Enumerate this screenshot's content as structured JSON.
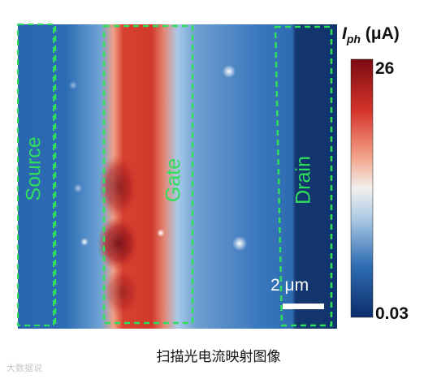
{
  "figure": {
    "regions": {
      "source": "Source",
      "gate": "Gate",
      "drain": "Drain"
    },
    "scale_bar": "2 μm",
    "colorbar": {
      "symbol": "I",
      "subscript": "ph",
      "unit": " (μA)",
      "max_label": "26",
      "min_label": "0.03",
      "max": 26,
      "min": 0.03,
      "colors": [
        "#0b2d6b",
        "#2f6db3",
        "#a9c8e3",
        "#f2f0ee",
        "#f3a48a",
        "#d6342a",
        "#7a0b12"
      ]
    },
    "caption": "扫描光电流映射图像",
    "colors": {
      "outline": "#2ee05a",
      "background_field": "#2c6ab3",
      "drain_field": "#14366f",
      "hot_stripe": "#d33a2c"
    }
  },
  "watermark": "大数据说"
}
